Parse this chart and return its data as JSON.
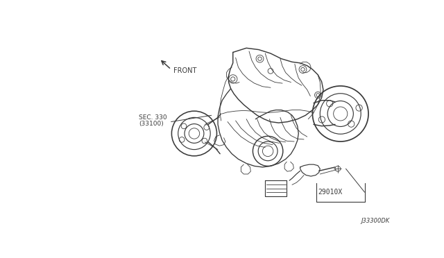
{
  "bg_color": "#ffffff",
  "line_color": "#3a3a3a",
  "fig_width": 6.4,
  "fig_height": 3.72,
  "dpi": 100,
  "label_front_text": "FRONT",
  "label_sec_line1": "SEC. 330",
  "label_sec_line2": "(33100)",
  "label_part_text": "29010X",
  "label_code_text": "J33300DK",
  "image_extent": [
    0,
    640,
    0,
    372
  ]
}
